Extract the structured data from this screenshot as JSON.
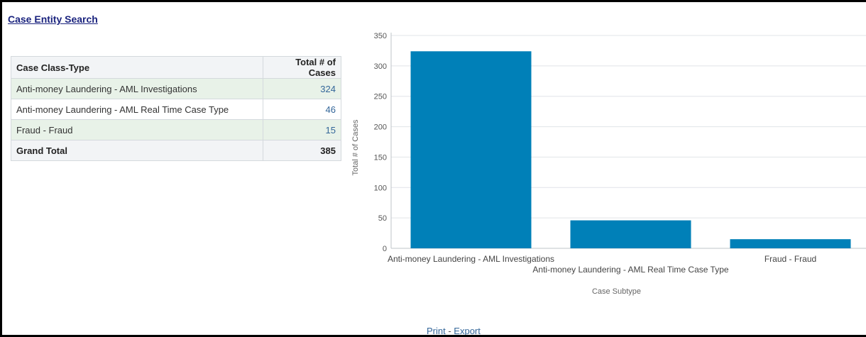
{
  "page": {
    "title": "Case Entity Search"
  },
  "table": {
    "headers": [
      "Case Class-Type",
      "Total # of Cases"
    ],
    "rows": [
      {
        "type": "Anti-money Laundering - AML Investigations",
        "count": "324"
      },
      {
        "type": "Anti-money Laundering - AML Real Time Case Type",
        "count": "46"
      },
      {
        "type": "Fraud - Fraud",
        "count": "15"
      }
    ],
    "total": {
      "label": "Grand Total",
      "count": "385"
    }
  },
  "chart_data": {
    "type": "bar",
    "categories": [
      "Anti-money Laundering - AML Investigations",
      "Anti-money Laundering - AML Real Time Case Type",
      "Fraud - Fraud"
    ],
    "values": [
      324,
      46,
      15
    ],
    "xlabel": "Case Subtype",
    "ylabel": "Total # of Cases",
    "ylim": [
      0,
      350
    ],
    "yticks": [
      0,
      50,
      100,
      150,
      200,
      250,
      300,
      350
    ],
    "grid": true,
    "bar_color": "#0080b8"
  },
  "footer": {
    "print_label": "Print",
    "separator": " - ",
    "export_label": "Export"
  }
}
